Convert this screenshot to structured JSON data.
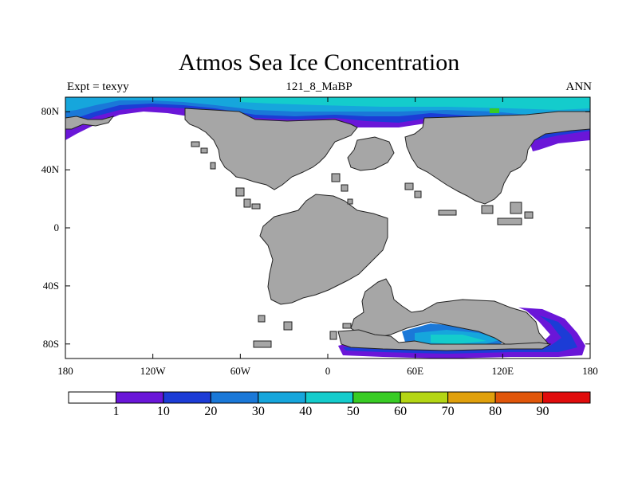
{
  "title": "Atmos Sea Ice Concentration",
  "subtitle_left": "Expt = texyy",
  "subtitle_center": "121_8_MaBP",
  "subtitle_right": "ANN",
  "map": {
    "projection": "cylindrical equidistant",
    "lon_range": [
      -180,
      180
    ],
    "lat_range": [
      -90,
      90
    ],
    "land_color": "#a6a6a6",
    "ocean_color": "#ffffff",
    "x_ticks": [
      {
        "lon": -180,
        "label": "180"
      },
      {
        "lon": -120,
        "label": "120W"
      },
      {
        "lon": -60,
        "label": "60W"
      },
      {
        "lon": 0,
        "label": "0"
      },
      {
        "lon": 60,
        "label": "60E"
      },
      {
        "lon": 120,
        "label": "120E"
      },
      {
        "lon": 180,
        "label": "180"
      }
    ],
    "y_ticks": [
      {
        "lat": 80,
        "label": "80N"
      },
      {
        "lat": 40,
        "label": "40N"
      },
      {
        "lat": 0,
        "label": "0"
      },
      {
        "lat": -40,
        "label": "40S"
      },
      {
        "lat": -80,
        "label": "80S"
      }
    ]
  },
  "colorbar": {
    "levels": [
      "1",
      "10",
      "20",
      "30",
      "40",
      "50",
      "60",
      "70",
      "80",
      "90"
    ],
    "colors": [
      "#ffffff",
      "#6a16d8",
      "#1c3cd6",
      "#1a78d8",
      "#16a6dc",
      "#14cccc",
      "#38cc24",
      "#b4d614",
      "#e0a00c",
      "#e0560a",
      "#e00c0c"
    ]
  }
}
